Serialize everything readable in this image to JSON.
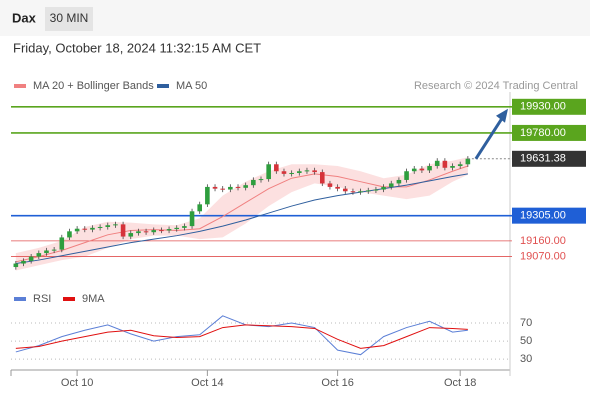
{
  "header": {
    "symbol": "Dax",
    "interval": "30 MIN",
    "timestamp": "Friday, October 18, 2024 11:32:15 AM CET"
  },
  "chart_data": {
    "type": "candlestick",
    "credit": "Research © 2024 Trading Central",
    "up_color": "#2e9e3e",
    "down_color": "#d6333a",
    "xlim": [
      -0.5,
      64.5
    ],
    "xticks": [
      {
        "value": 8,
        "label": "Oct 10"
      },
      {
        "value": 25,
        "label": "Oct 14"
      },
      {
        "value": 42,
        "label": "Oct 16"
      },
      {
        "value": 58,
        "label": "Oct 18"
      }
    ],
    "ylim": [
      18970,
      20015
    ],
    "candles": [
      [
        19010,
        19045,
        18995,
        19030
      ],
      [
        19030,
        19060,
        19015,
        19045
      ],
      [
        19045,
        19085,
        19030,
        19070
      ],
      [
        19070,
        19105,
        19055,
        19090
      ],
      [
        19090,
        19120,
        19075,
        19105
      ],
      [
        19105,
        19125,
        19090,
        19110
      ],
      [
        19110,
        19195,
        19095,
        19180
      ],
      [
        19180,
        19230,
        19165,
        19215
      ],
      [
        19215,
        19245,
        19200,
        19230
      ],
      [
        19230,
        19245,
        19210,
        19225
      ],
      [
        19225,
        19250,
        19210,
        19235
      ],
      [
        19235,
        19255,
        19220,
        19240
      ],
      [
        19240,
        19265,
        19225,
        19250
      ],
      [
        19250,
        19270,
        19235,
        19255
      ],
      [
        19255,
        19270,
        19170,
        19185
      ],
      [
        19185,
        19220,
        19170,
        19205
      ],
      [
        19205,
        19230,
        19190,
        19215
      ],
      [
        19215,
        19230,
        19195,
        19210
      ],
      [
        19210,
        19237,
        19195,
        19222
      ],
      [
        19222,
        19237,
        19205,
        19220
      ],
      [
        19220,
        19243,
        19205,
        19228
      ],
      [
        19228,
        19250,
        19213,
        19235
      ],
      [
        19235,
        19260,
        19220,
        19245
      ],
      [
        19245,
        19345,
        19230,
        19330
      ],
      [
        19330,
        19385,
        19315,
        19370
      ],
      [
        19370,
        19485,
        19355,
        19470
      ],
      [
        19470,
        19485,
        19445,
        19460
      ],
      [
        19460,
        19475,
        19440,
        19455
      ],
      [
        19455,
        19485,
        19440,
        19470
      ],
      [
        19470,
        19485,
        19450,
        19465
      ],
      [
        19465,
        19495,
        19450,
        19480
      ],
      [
        19480,
        19525,
        19465,
        19510
      ],
      [
        19510,
        19530,
        19495,
        19515
      ],
      [
        19515,
        19615,
        19500,
        19600
      ],
      [
        19600,
        19615,
        19545,
        19560
      ],
      [
        19560,
        19575,
        19530,
        19545
      ],
      [
        19545,
        19565,
        19530,
        19550
      ],
      [
        19550,
        19575,
        19535,
        19560
      ],
      [
        19560,
        19580,
        19545,
        19565
      ],
      [
        19565,
        19580,
        19540,
        19555
      ],
      [
        19555,
        19570,
        19475,
        19490
      ],
      [
        19490,
        19505,
        19455,
        19470
      ],
      [
        19470,
        19485,
        19445,
        19460
      ],
      [
        19460,
        19475,
        19430,
        19445
      ],
      [
        19445,
        19460,
        19425,
        19440
      ],
      [
        19440,
        19460,
        19425,
        19445
      ],
      [
        19445,
        19465,
        19430,
        19450
      ],
      [
        19450,
        19470,
        19435,
        19455
      ],
      [
        19455,
        19485,
        19440,
        19470
      ],
      [
        19470,
        19505,
        19455,
        19490
      ],
      [
        19490,
        19525,
        19475,
        19510
      ],
      [
        19510,
        19575,
        19495,
        19560
      ],
      [
        19560,
        19590,
        19545,
        19575
      ],
      [
        19575,
        19590,
        19550,
        19565
      ],
      [
        19565,
        19605,
        19550,
        19590
      ],
      [
        19590,
        19635,
        19575,
        19620
      ],
      [
        19620,
        19635,
        19565,
        19580
      ],
      [
        19580,
        19605,
        19565,
        19590
      ],
      [
        19590,
        19615,
        19575,
        19600
      ],
      [
        19600,
        19647,
        19585,
        19632
      ]
    ],
    "indicator_x": [
      0,
      3,
      6,
      9,
      12,
      15,
      18,
      21,
      24,
      27,
      30,
      33,
      36,
      39,
      42,
      45,
      48,
      51,
      54,
      57,
      59
    ],
    "series": [
      {
        "name": "MA 20 + Bollinger Bands",
        "color": "#f08080",
        "values": [
          19040,
          19070,
          19105,
          19150,
          19195,
          19220,
          19225,
          19220,
          19230,
          19300,
          19380,
          19460,
          19520,
          19545,
          19530,
          19500,
          19470,
          19470,
          19510,
          19560,
          19590
        ]
      },
      {
        "name": "MA 50",
        "color": "#2f5f9e",
        "values": [
          19030,
          19050,
          19075,
          19100,
          19125,
          19150,
          19170,
          19190,
          19215,
          19245,
          19280,
          19320,
          19360,
          19395,
          19420,
          19440,
          19460,
          19480,
          19505,
          19530,
          19545
        ]
      }
    ],
    "bands": {
      "color": "#fbd3d3",
      "upper": [
        19090,
        19120,
        19160,
        19240,
        19270,
        19265,
        19255,
        19250,
        19290,
        19420,
        19500,
        19560,
        19600,
        19600,
        19590,
        19560,
        19520,
        19540,
        19600,
        19620,
        19640
      ],
      "lower": [
        18990,
        19020,
        19050,
        19070,
        19120,
        19170,
        19190,
        19190,
        19170,
        19180,
        19260,
        19360,
        19440,
        19490,
        19470,
        19440,
        19420,
        19400,
        19420,
        19500,
        19540
      ]
    },
    "levels": [
      {
        "value": 19930,
        "label": "19930.00",
        "color": "#5aa51e",
        "boxed": true
      },
      {
        "value": 19780,
        "label": "19780.00",
        "color": "#5aa51e",
        "boxed": true
      },
      {
        "value": 19305,
        "label": "19305.00",
        "color": "#1f5fd6",
        "boxed": true
      },
      {
        "value": 19160,
        "label": "19160.00",
        "color": "#e05050",
        "boxed": false
      },
      {
        "value": 19070,
        "label": "19070.00",
        "color": "#e05050",
        "boxed": false
      }
    ],
    "last_price": 19631.38,
    "last_color": "#333333",
    "target": 19930,
    "rsi": {
      "ylim": [
        18,
        90
      ],
      "yticks": [
        70,
        50,
        30
      ],
      "series": [
        {
          "name": "RSI",
          "color": "#5b7fd6",
          "values": [
            38,
            45,
            55,
            62,
            68,
            58,
            50,
            55,
            57,
            78,
            68,
            66,
            70,
            65,
            40,
            35,
            55,
            65,
            72,
            60,
            62
          ]
        },
        {
          "name": "9MA",
          "color": "#e01010",
          "values": [
            42,
            44,
            50,
            55,
            60,
            62,
            56,
            54,
            55,
            65,
            68,
            67,
            66,
            64,
            52,
            42,
            45,
            55,
            65,
            64,
            63
          ]
        }
      ]
    }
  }
}
